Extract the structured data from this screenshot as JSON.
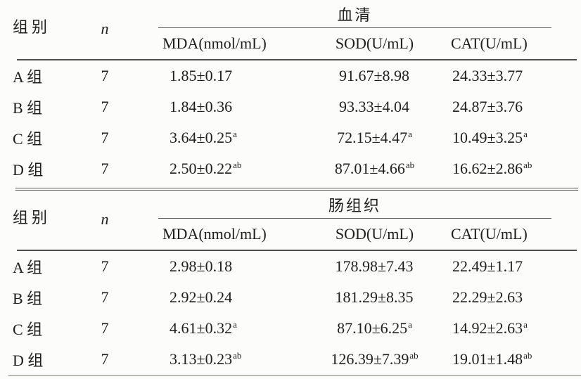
{
  "table": {
    "sections": [
      {
        "group_header": "组别",
        "n_header": "n",
        "span_header": "血清",
        "columns": [
          "MDA(nmol/mL)",
          "SOD(U/mL)",
          "CAT(U/mL)"
        ],
        "rows": [
          {
            "group": "A 组",
            "n": "7",
            "mda": {
              "v": "1.85±0.17",
              "sup": ""
            },
            "sod": {
              "v": "91.67±8.98",
              "sup": ""
            },
            "cat": {
              "v": "24.33±3.77",
              "sup": ""
            }
          },
          {
            "group": "B 组",
            "n": "7",
            "mda": {
              "v": "1.84±0.36",
              "sup": ""
            },
            "sod": {
              "v": "93.33±4.04",
              "sup": ""
            },
            "cat": {
              "v": "24.87±3.76",
              "sup": ""
            }
          },
          {
            "group": "C 组",
            "n": "7",
            "mda": {
              "v": "3.64±0.25",
              "sup": "a"
            },
            "sod": {
              "v": "72.15±4.47",
              "sup": "a"
            },
            "cat": {
              "v": "10.49±3.25",
              "sup": "a"
            }
          },
          {
            "group": "D 组",
            "n": "7",
            "mda": {
              "v": "2.50±0.22",
              "sup": "ab"
            },
            "sod": {
              "v": "87.01±4.66",
              "sup": "ab"
            },
            "cat": {
              "v": "16.62±2.86",
              "sup": "ab"
            }
          }
        ]
      },
      {
        "group_header": "组别",
        "n_header": "n",
        "span_header": "肠组织",
        "columns": [
          "MDA(nmol/mL)",
          "SOD(U/mL)",
          "CAT(U/mL)"
        ],
        "rows": [
          {
            "group": "A 组",
            "n": "7",
            "mda": {
              "v": "2.98±0.18",
              "sup": ""
            },
            "sod": {
              "v": "178.98±7.43",
              "sup": ""
            },
            "cat": {
              "v": "22.49±1.17",
              "sup": ""
            }
          },
          {
            "group": "B 组",
            "n": "7",
            "mda": {
              "v": "2.92±0.24",
              "sup": ""
            },
            "sod": {
              "v": "181.29±8.35",
              "sup": ""
            },
            "cat": {
              "v": "22.29±2.63",
              "sup": ""
            }
          },
          {
            "group": "C 组",
            "n": "7",
            "mda": {
              "v": "4.61±0.32",
              "sup": "a"
            },
            "sod": {
              "v": "87.10±6.25",
              "sup": "a"
            },
            "cat": {
              "v": "14.92±2.63",
              "sup": "a"
            }
          },
          {
            "group": "D 组",
            "n": "7",
            "mda": {
              "v": "3.13±0.23",
              "sup": "ab"
            },
            "sod": {
              "v": "126.39±7.39",
              "sup": "ab"
            },
            "cat": {
              "v": "19.01±1.48",
              "sup": "ab"
            }
          }
        ]
      }
    ]
  }
}
